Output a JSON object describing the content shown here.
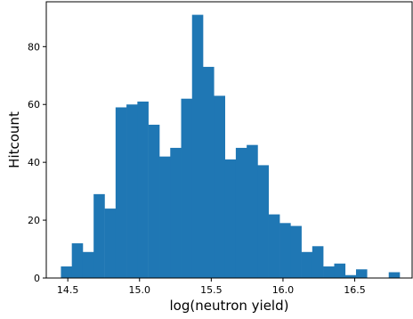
{
  "chart_data": {
    "type": "bar",
    "variant": "histogram",
    "title": "",
    "xlabel": "log(neutron yield)",
    "ylabel": "Hitcount",
    "bar_color": "#1f77b4",
    "bin_width": 0.0762,
    "bin_left_edges": [
      14.452,
      14.528,
      14.604,
      14.68,
      14.757,
      14.833,
      14.909,
      14.985,
      15.062,
      15.138,
      15.214,
      15.29,
      15.366,
      15.442,
      15.519,
      15.595,
      15.671,
      15.747,
      15.823,
      15.9,
      15.976,
      16.052,
      16.128,
      16.204,
      16.28,
      16.357,
      16.433,
      16.509,
      16.585,
      16.661,
      16.737
    ],
    "values": [
      4,
      12,
      9,
      29,
      24,
      59,
      60,
      61,
      53,
      42,
      45,
      62,
      91,
      73,
      63,
      41,
      45,
      46,
      39,
      22,
      19,
      18,
      9,
      11,
      4,
      5,
      1,
      3,
      0,
      0,
      2
    ],
    "xlim": [
      14.35,
      16.9
    ],
    "ylim": [
      0,
      95.5
    ],
    "xticks": [
      14.5,
      15.0,
      15.5,
      16.0,
      16.5
    ],
    "xtick_labels": [
      "14.5",
      "15.0",
      "15.5",
      "16.0",
      "16.5"
    ],
    "yticks": [
      0,
      20,
      40,
      60,
      80
    ],
    "ytick_labels": [
      "0",
      "20",
      "40",
      "60",
      "80"
    ],
    "grid": false,
    "legend": "none"
  }
}
